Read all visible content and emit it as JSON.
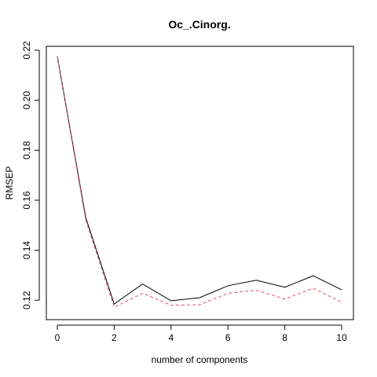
{
  "chart_data": {
    "type": "line",
    "title": "Oc_.Cinorg.",
    "xlabel": "number of components",
    "ylabel": "RMSEP",
    "xlim": [
      0,
      10
    ],
    "ylim": [
      0.116,
      0.22
    ],
    "x_ticks": [
      0,
      2,
      4,
      6,
      8,
      10
    ],
    "y_ticks": [
      0.12,
      0.14,
      0.16,
      0.18,
      0.2,
      0.22
    ],
    "x": [
      0,
      1,
      2,
      3,
      4,
      5,
      6,
      7,
      8,
      9,
      10
    ],
    "series": [
      {
        "style": "solid",
        "color": "#000000",
        "values": [
          0.2175,
          0.153,
          0.1185,
          0.1265,
          0.1198,
          0.121,
          0.1258,
          0.128,
          0.1252,
          0.1298,
          0.1242
        ]
      },
      {
        "style": "dashed",
        "color": "#DF536B",
        "values": [
          0.2172,
          0.152,
          0.1172,
          0.1228,
          0.118,
          0.1182,
          0.1228,
          0.124,
          0.1205,
          0.1248,
          0.1192
        ]
      }
    ],
    "grid": false,
    "legend": "none"
  }
}
